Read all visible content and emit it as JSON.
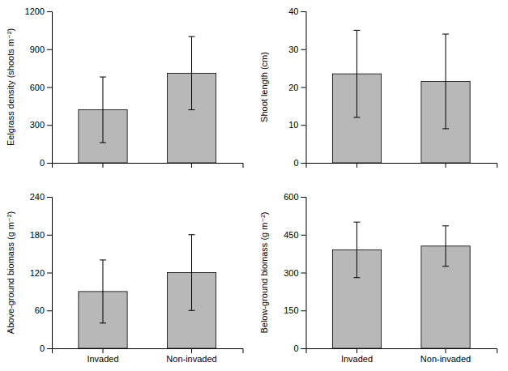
{
  "chart_data": [
    {
      "type": "bar",
      "y_label": "Eelgrass density (shoots m⁻²)",
      "categories": [
        "Invaded",
        "Non-invaded"
      ],
      "values": [
        420,
        710
      ],
      "errors": [
        260,
        290
      ],
      "color": "#b8b8b8",
      "ylim": [
        0,
        1200
      ],
      "yticks": [
        0,
        300,
        600,
        900,
        1200
      ],
      "grid": false,
      "tick_labels": "y"
    },
    {
      "type": "bar",
      "y_label": "Shoot length (cm)",
      "categories": [
        "Invaded",
        "Non-invaded"
      ],
      "values": [
        23.5,
        21.5
      ],
      "errors": [
        11.5,
        12.5
      ],
      "color": "#b8b8b8",
      "ylim": [
        0,
        40
      ],
      "yticks": [
        0,
        10,
        20,
        30,
        40
      ],
      "grid": false,
      "tick_labels": "y"
    },
    {
      "type": "bar",
      "y_label": "Above-ground biomass (g m⁻²)",
      "categories": [
        "Invaded",
        "Non-invaded"
      ],
      "values": [
        90,
        120
      ],
      "errors": [
        50,
        60
      ],
      "color": "#b8b8b8",
      "ylim": [
        0,
        240
      ],
      "yticks": [
        0,
        60,
        120,
        180,
        240
      ],
      "grid": false
    },
    {
      "type": "bar",
      "y_label": "Below-ground biomass (g m⁻²)",
      "categories": [
        "Invaded",
        "Non-invaded"
      ],
      "values": [
        390,
        405
      ],
      "errors": [
        110,
        80
      ],
      "color": "#b8b8b8",
      "ylim": [
        0,
        600
      ],
      "yticks": [
        0,
        150,
        300,
        450,
        600
      ],
      "grid": false
    }
  ]
}
